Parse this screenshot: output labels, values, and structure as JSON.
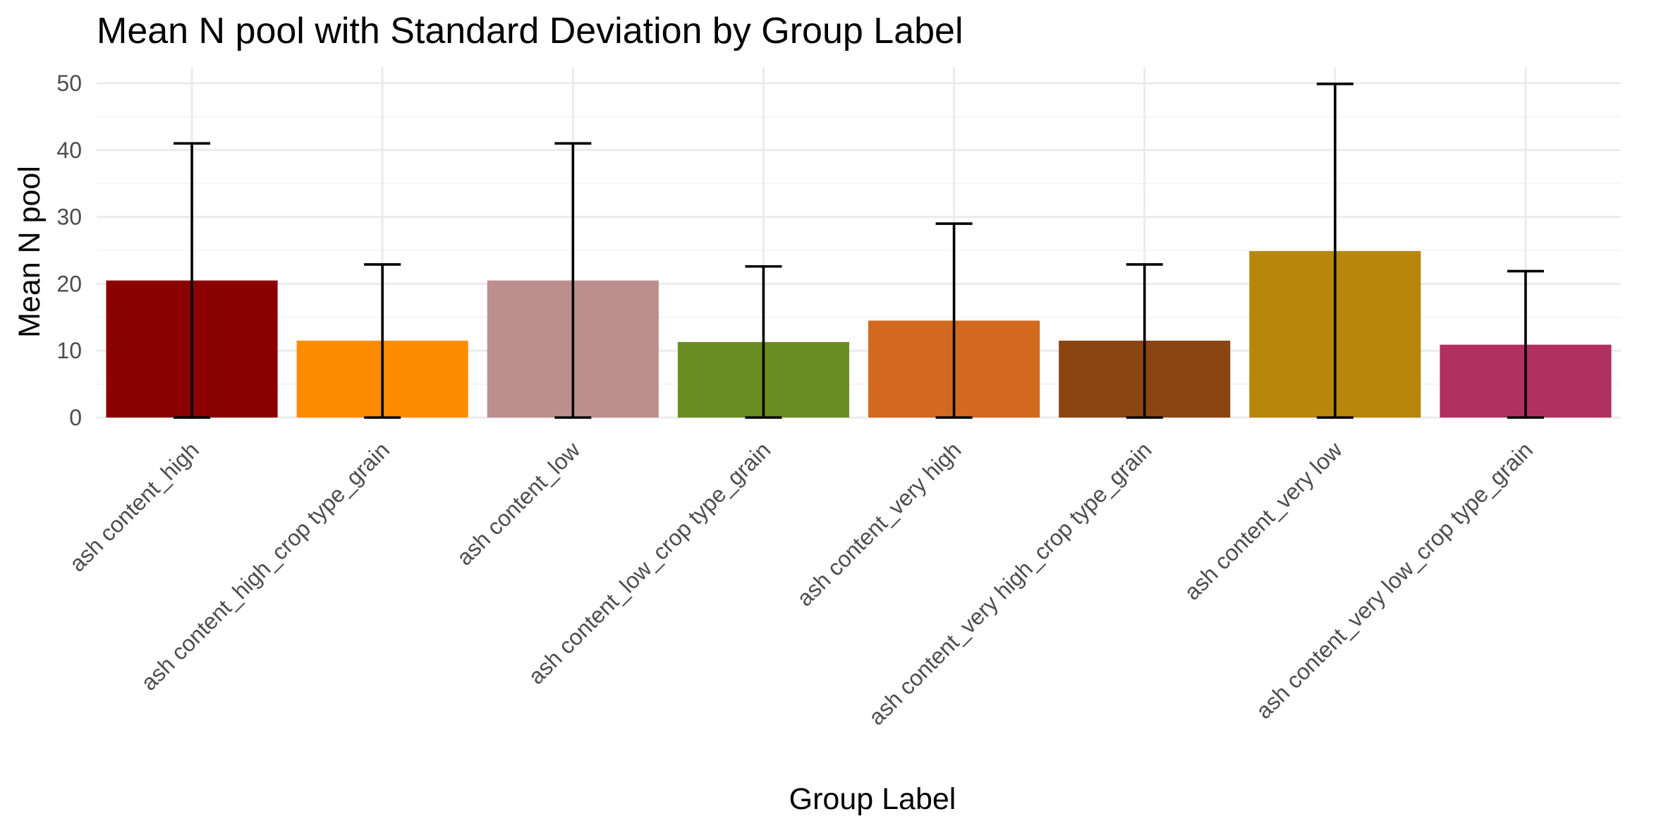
{
  "chart_data": {
    "type": "bar",
    "title": "Mean N pool with Standard Deviation by Group Label",
    "xlabel": "Group Label",
    "ylabel": "Mean N pool",
    "ylim": [
      0,
      52
    ],
    "yticks": [
      "0",
      "10",
      "20",
      "30",
      "40",
      "50"
    ],
    "grid": true,
    "legend": "none",
    "categories": [
      "ash content_high",
      "ash content_high_crop type_grain",
      "ash content_low",
      "ash content_low_crop type_grain",
      "ash content_very high",
      "ash content_very high_crop type_grain",
      "ash content_very low",
      "ash content_very low_crop type_grain"
    ],
    "values": [
      20.5,
      11.5,
      20.5,
      11.3,
      14.5,
      11.5,
      24.9,
      10.9
    ],
    "error_low": [
      0,
      0,
      0,
      0,
      0,
      0,
      0,
      0
    ],
    "error_high": [
      41.0,
      22.9,
      41.0,
      22.6,
      29.0,
      22.9,
      49.9,
      21.9
    ],
    "colors": [
      "#8B0000",
      "#FF8C00",
      "#BC8F8F",
      "#6B8E23",
      "#D2691E",
      "#8B4513",
      "#B8860B",
      "#B03060"
    ]
  }
}
